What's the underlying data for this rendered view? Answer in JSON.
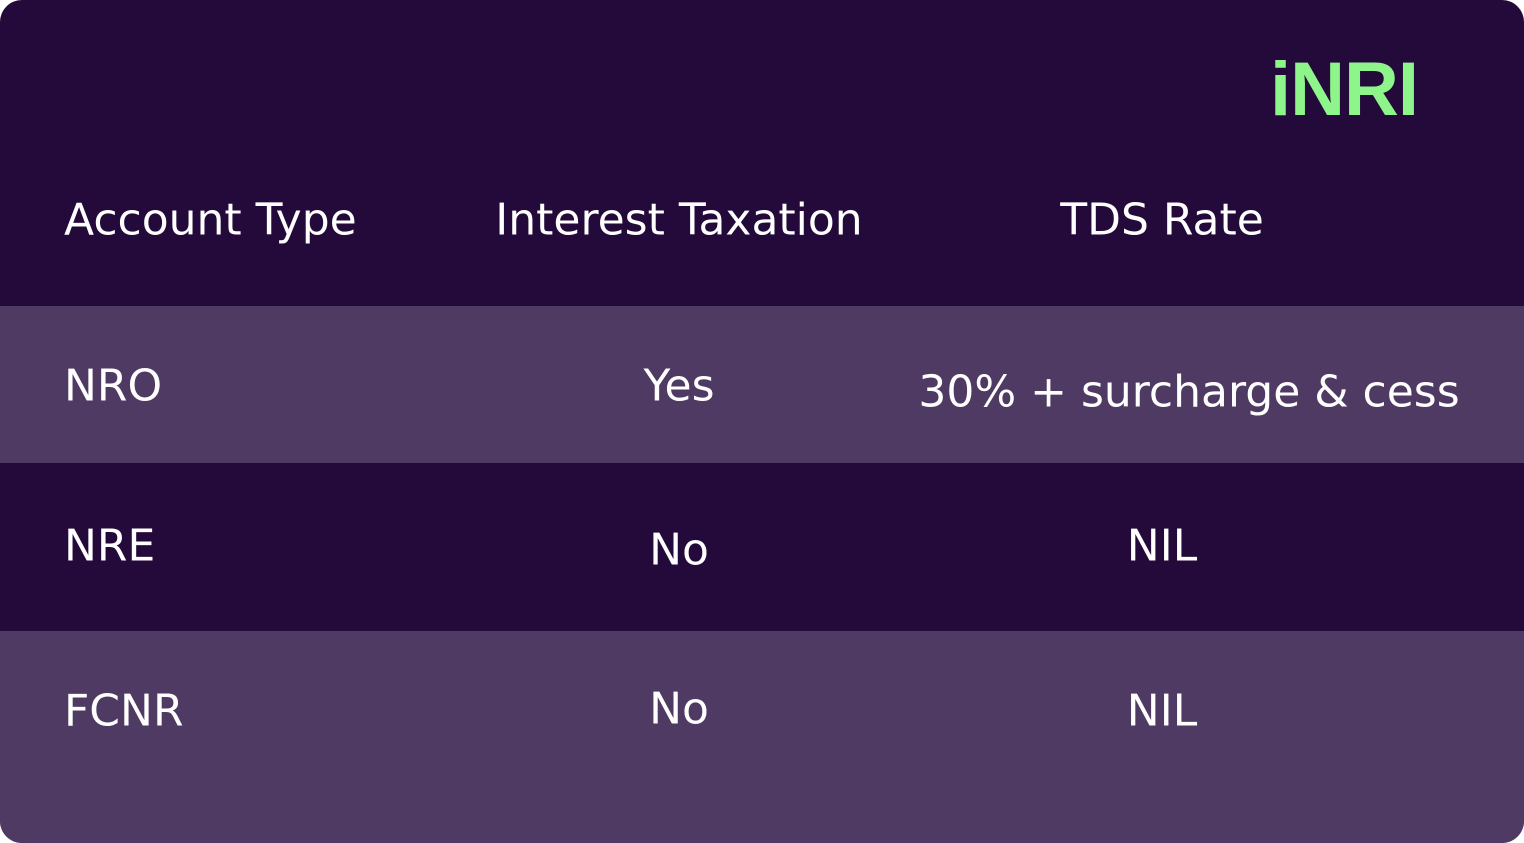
{
  "logo": "iNRI",
  "table": {
    "header": [
      "Account Type",
      "Interest Taxation",
      "TDS Rate"
    ],
    "rows": [
      [
        "NRO",
        "Yes",
        "30% + surcharge & cess"
      ],
      [
        "NRE",
        "No",
        "NIL"
      ],
      [
        "FCNR",
        "No",
        "NIL"
      ]
    ]
  }
}
